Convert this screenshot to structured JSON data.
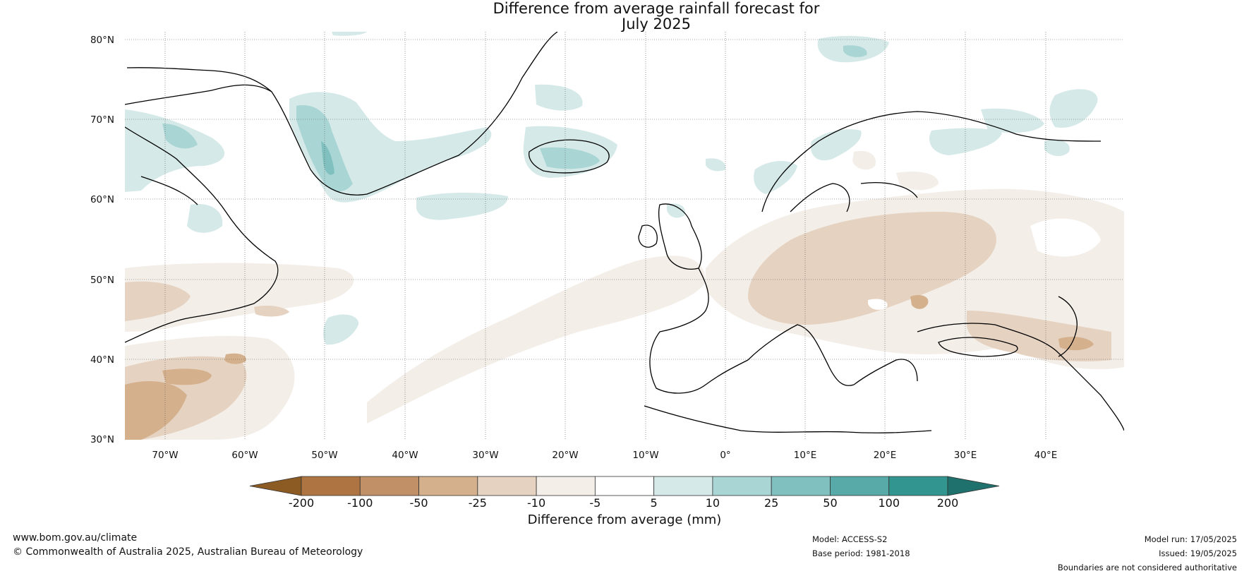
{
  "title_line1": "Difference from average rainfall forecast for",
  "title_line2": "July 2025",
  "lat_labels": [
    "80°N",
    "70°N",
    "60°N",
    "50°N",
    "40°N",
    "30°N"
  ],
  "lon_labels": [
    "70°W",
    "60°W",
    "50°W",
    "40°W",
    "30°W",
    "20°W",
    "10°W",
    "0°",
    "10°E",
    "20°E",
    "30°E",
    "40°E"
  ],
  "colorbar": {
    "label": "Difference from average (mm)",
    "ticks": [
      "-200",
      "-100",
      "-50",
      "-25",
      "-10",
      "-5",
      "5",
      "10",
      "25",
      "50",
      "100",
      "200"
    ],
    "colors": [
      "#8c5a23",
      "#ae7442",
      "#c29066",
      "#d4b08d",
      "#e5d2c0",
      "#f3eee8",
      "#ffffff",
      "#d5e9e8",
      "#a9d6d5",
      "#80c1bf",
      "#58aaa8",
      "#32958f",
      "#1f716d"
    ]
  },
  "footer": {
    "url": "www.bom.gov.au/climate",
    "copyright": "© Commonwealth of Australia 2025, Australian Bureau of Meteorology",
    "model": "Model: ACCESS-S2",
    "base_period": "Base period: 1981-2018",
    "model_run": "Model run: 17/05/2025",
    "issued": "Issued: 19/05/2025",
    "disclaimer": "Boundaries are not considered authoritative"
  }
}
